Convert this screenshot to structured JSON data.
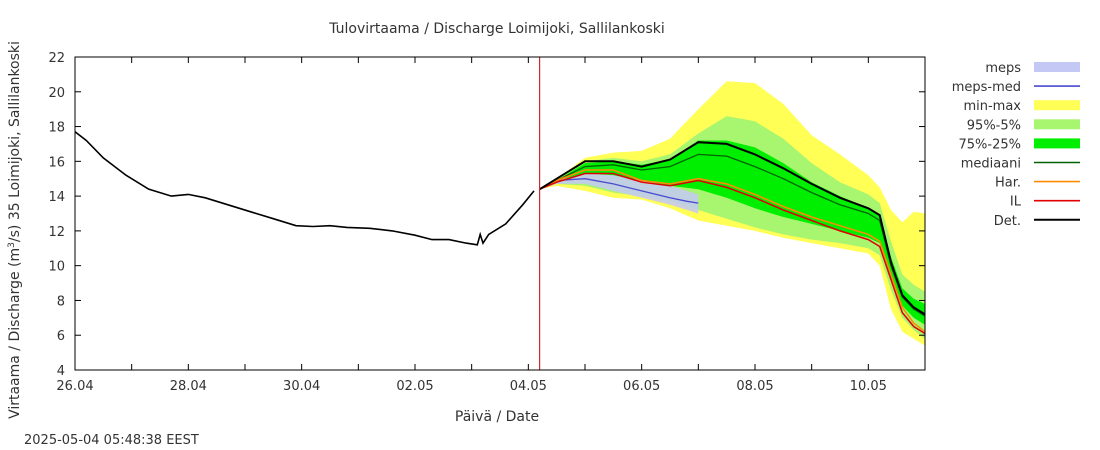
{
  "chart_data": {
    "type": "line",
    "title": "Tulovirtaama / Discharge  Loimijoki, Sallilankoski",
    "xlabel": "Päivä / Date",
    "ylabel_prefix": "Virtaama / Discharge (m",
    "ylabel_sup": "3",
    "ylabel_suffix": "/s)  35 Loimijoki, Sallilankoski",
    "timestamp": "2025-05-04  05:48:38 EEST",
    "x_range_days": [
      0,
      15
    ],
    "ylim": [
      4,
      22
    ],
    "x_ticks": [
      {
        "day": 0,
        "label": "26.04"
      },
      {
        "day": 2,
        "label": "28.04"
      },
      {
        "day": 4,
        "label": "30.04"
      },
      {
        "day": 6,
        "label": "02.05"
      },
      {
        "day": 8,
        "label": "04.05"
      },
      {
        "day": 10,
        "label": "06.05"
      },
      {
        "day": 12,
        "label": "08.05"
      },
      {
        "day": 14,
        "label": "10.05"
      }
    ],
    "y_ticks": [
      4,
      6,
      8,
      10,
      12,
      14,
      16,
      18,
      20,
      22
    ],
    "current_time_day": 8.2,
    "legend": [
      {
        "key": "meps",
        "label": "meps",
        "style": "band",
        "color": "#c4c8f4"
      },
      {
        "key": "meps_med",
        "label": "meps-med",
        "style": "line",
        "color": "#4a4ad0"
      },
      {
        "key": "minmax",
        "label": "min-max",
        "style": "band",
        "color": "#ffff55"
      },
      {
        "key": "p95_5",
        "label": "95%-5%",
        "style": "band",
        "color": "#a8f570"
      },
      {
        "key": "p75_25",
        "label": "75%-25%",
        "style": "band",
        "color": "#00ee00"
      },
      {
        "key": "median",
        "label": "mediaani",
        "style": "line",
        "color": "#006400"
      },
      {
        "key": "har",
        "label": "Har.",
        "style": "line",
        "color": "#ff8c00"
      },
      {
        "key": "il",
        "label": "IL",
        "style": "line",
        "color": "#e00000"
      },
      {
        "key": "det",
        "label": "Det.",
        "style": "line",
        "color": "#000000"
      }
    ],
    "observed": {
      "x": [
        0,
        0.2,
        0.5,
        0.9,
        1.3,
        1.7,
        2.0,
        2.3,
        2.7,
        3.1,
        3.5,
        3.9,
        4.2,
        4.5,
        4.8,
        5.2,
        5.6,
        6.0,
        6.3,
        6.6,
        6.9,
        7.1,
        7.15,
        7.2,
        7.3,
        7.6,
        7.9,
        8.1
      ],
      "y": [
        17.7,
        17.2,
        16.2,
        15.2,
        14.4,
        14.0,
        14.1,
        13.9,
        13.5,
        13.1,
        12.7,
        12.3,
        12.25,
        12.3,
        12.2,
        12.15,
        12.0,
        11.75,
        11.5,
        11.5,
        11.3,
        11.2,
        11.8,
        11.3,
        11.8,
        12.4,
        13.5,
        14.3
      ]
    },
    "forecast_x": [
      8.2,
      8.5,
      9.0,
      9.5,
      10.0,
      10.5,
      11.0,
      11.5,
      12.0,
      12.5,
      13.0,
      13.5,
      14.0,
      14.2,
      14.4,
      14.6,
      14.8,
      15.0
    ],
    "minmax": {
      "upper": [
        14.4,
        15.0,
        16.2,
        16.5,
        16.6,
        17.3,
        19.0,
        20.6,
        20.5,
        19.3,
        17.5,
        16.4,
        15.2,
        14.5,
        13.2,
        12.5,
        13.1,
        13.0
      ],
      "lower": [
        14.4,
        14.6,
        14.3,
        13.9,
        13.8,
        13.3,
        12.6,
        12.3,
        12.0,
        11.6,
        11.3,
        11.0,
        10.7,
        10.0,
        7.5,
        6.2,
        5.8,
        5.4
      ]
    },
    "p95_5": {
      "upper": [
        14.4,
        14.9,
        16.0,
        16.2,
        16.0,
        16.4,
        17.6,
        18.6,
        18.3,
        17.3,
        15.9,
        14.8,
        14.1,
        13.6,
        11.4,
        9.5,
        8.9,
        8.5
      ]
    },
    "p95_5_lower": [
      14.4,
      14.7,
      14.6,
      14.2,
      14.0,
      13.7,
      13.2,
      12.7,
      12.2,
      11.8,
      11.5,
      11.3,
      11.0,
      10.6,
      8.6,
      7.0,
      6.3,
      5.8
    ],
    "p75_25": {
      "upper": [
        14.4,
        14.9,
        15.9,
        16.0,
        15.8,
        16.1,
        17.2,
        17.2,
        16.8,
        15.9,
        14.8,
        14.0,
        13.3,
        12.9,
        10.5,
        8.7,
        8.1,
        7.8
      ],
      "lower": [
        14.4,
        14.8,
        15.3,
        15.2,
        14.8,
        14.6,
        14.4,
        13.9,
        13.3,
        12.8,
        12.4,
        12.0,
        11.6,
        11.3,
        9.3,
        7.7,
        7.0,
        6.6
      ]
    },
    "median": [
      14.4,
      14.9,
      15.7,
      15.8,
      15.5,
      15.7,
      16.4,
      16.3,
      15.7,
      15.0,
      14.2,
      13.5,
      13.0,
      12.6,
      10.0,
      8.2,
      7.5,
      7.1
    ],
    "har": [
      14.4,
      14.9,
      15.5,
      15.5,
      14.9,
      14.7,
      15.0,
      14.7,
      14.1,
      13.4,
      12.8,
      12.3,
      11.8,
      11.4,
      9.5,
      7.6,
      6.7,
      6.2
    ],
    "il": [
      14.4,
      14.8,
      15.3,
      15.3,
      14.8,
      14.6,
      14.9,
      14.5,
      13.9,
      13.2,
      12.6,
      12.0,
      11.5,
      11.1,
      9.2,
      7.3,
      6.5,
      6.1
    ],
    "det": [
      14.4,
      15.0,
      16.0,
      16.0,
      15.7,
      16.1,
      17.1,
      17.0,
      16.4,
      15.6,
      14.7,
      13.9,
      13.3,
      12.9,
      10.2,
      8.3,
      7.6,
      7.2
    ],
    "meps_x": [
      8.2,
      8.5,
      9.0,
      9.5,
      10.0,
      10.5,
      10.8,
      11.0
    ],
    "meps_upper": [
      14.4,
      14.9,
      15.3,
      15.2,
      14.9,
      14.6,
      14.3,
      14.1
    ],
    "meps_lower": [
      14.4,
      14.7,
      14.7,
      14.3,
      13.9,
      13.5,
      13.2,
      13.0
    ],
    "meps_med": [
      14.4,
      14.9,
      15.0,
      14.7,
      14.3,
      13.9,
      13.7,
      13.6
    ]
  }
}
